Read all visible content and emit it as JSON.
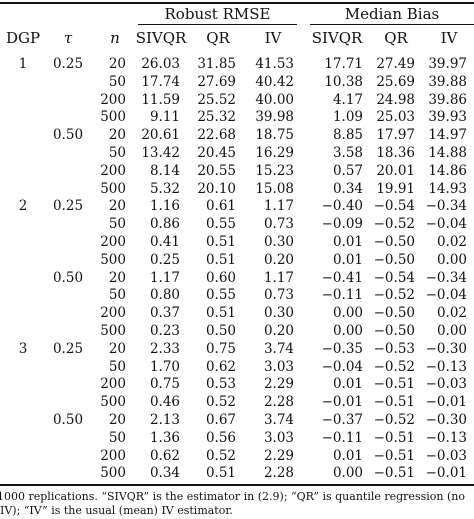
{
  "headers": {
    "group_rmse": "Robust RMSE",
    "group_bias": "Median Bias",
    "dgp": "DGP",
    "tau": "τ",
    "n": "n",
    "cols": [
      "SIVQR",
      "QR",
      "IV",
      "SIVQR",
      "QR",
      "IV"
    ]
  },
  "rows": [
    {
      "dgp": "1",
      "tau": "0.25",
      "n": "20",
      "vals": [
        "26.03",
        "31.85",
        "41.53",
        "17.71",
        "27.49",
        "39.97"
      ]
    },
    {
      "dgp": "",
      "tau": "",
      "n": "50",
      "vals": [
        "17.74",
        "27.69",
        "40.42",
        "10.38",
        "25.69",
        "39.88"
      ]
    },
    {
      "dgp": "",
      "tau": "",
      "n": "200",
      "vals": [
        "11.59",
        "25.52",
        "40.00",
        "4.17",
        "24.98",
        "39.86"
      ]
    },
    {
      "dgp": "",
      "tau": "",
      "n": "500",
      "vals": [
        "9.11",
        "25.32",
        "39.98",
        "1.09",
        "25.03",
        "39.93"
      ]
    },
    {
      "dgp": "",
      "tau": "0.50",
      "n": "20",
      "vals": [
        "20.61",
        "22.68",
        "18.75",
        "8.85",
        "17.97",
        "14.97"
      ]
    },
    {
      "dgp": "",
      "tau": "",
      "n": "50",
      "vals": [
        "13.42",
        "20.45",
        "16.29",
        "3.58",
        "18.36",
        "14.88"
      ]
    },
    {
      "dgp": "",
      "tau": "",
      "n": "200",
      "vals": [
        "8.14",
        "20.55",
        "15.23",
        "0.57",
        "20.01",
        "14.86"
      ]
    },
    {
      "dgp": "",
      "tau": "",
      "n": "500",
      "vals": [
        "5.32",
        "20.10",
        "15.08",
        "0.34",
        "19.91",
        "14.93"
      ]
    },
    {
      "dgp": "2",
      "tau": "0.25",
      "n": "20",
      "vals": [
        "1.16",
        "0.61",
        "1.17",
        "−0.40",
        "−0.54",
        "−0.34"
      ]
    },
    {
      "dgp": "",
      "tau": "",
      "n": "50",
      "vals": [
        "0.86",
        "0.55",
        "0.73",
        "−0.09",
        "−0.52",
        "−0.04"
      ]
    },
    {
      "dgp": "",
      "tau": "",
      "n": "200",
      "vals": [
        "0.41",
        "0.51",
        "0.30",
        "0.01",
        "−0.50",
        "0.02"
      ]
    },
    {
      "dgp": "",
      "tau": "",
      "n": "500",
      "vals": [
        "0.25",
        "0.51",
        "0.20",
        "0.01",
        "−0.50",
        "0.00"
      ]
    },
    {
      "dgp": "",
      "tau": "0.50",
      "n": "20",
      "vals": [
        "1.17",
        "0.60",
        "1.17",
        "−0.41",
        "−0.54",
        "−0.34"
      ]
    },
    {
      "dgp": "",
      "tau": "",
      "n": "50",
      "vals": [
        "0.80",
        "0.55",
        "0.73",
        "−0.11",
        "−0.52",
        "−0.04"
      ]
    },
    {
      "dgp": "",
      "tau": "",
      "n": "200",
      "vals": [
        "0.37",
        "0.51",
        "0.30",
        "0.00",
        "−0.50",
        "0.02"
      ]
    },
    {
      "dgp": "",
      "tau": "",
      "n": "500",
      "vals": [
        "0.23",
        "0.50",
        "0.20",
        "0.00",
        "−0.50",
        "0.00"
      ]
    },
    {
      "dgp": "3",
      "tau": "0.25",
      "n": "20",
      "vals": [
        "2.33",
        "0.75",
        "3.74",
        "−0.35",
        "−0.53",
        "−0.30"
      ]
    },
    {
      "dgp": "",
      "tau": "",
      "n": "50",
      "vals": [
        "1.70",
        "0.62",
        "3.03",
        "−0.04",
        "−0.52",
        "−0.13"
      ]
    },
    {
      "dgp": "",
      "tau": "",
      "n": "200",
      "vals": [
        "0.75",
        "0.53",
        "2.29",
        "0.01",
        "−0.51",
        "−0.03"
      ]
    },
    {
      "dgp": "",
      "tau": "",
      "n": "500",
      "vals": [
        "0.46",
        "0.52",
        "2.28",
        "−0.01",
        "−0.51",
        "−0.01"
      ]
    },
    {
      "dgp": "",
      "tau": "0.50",
      "n": "20",
      "vals": [
        "2.13",
        "0.67",
        "3.74",
        "−0.37",
        "−0.52",
        "−0.30"
      ]
    },
    {
      "dgp": "",
      "tau": "",
      "n": "50",
      "vals": [
        "1.36",
        "0.56",
        "3.03",
        "−0.11",
        "−0.51",
        "−0.13"
      ]
    },
    {
      "dgp": "",
      "tau": "",
      "n": "200",
      "vals": [
        "0.62",
        "0.52",
        "2.29",
        "0.01",
        "−0.51",
        "−0.03"
      ]
    },
    {
      "dgp": "",
      "tau": "",
      "n": "500",
      "vals": [
        "0.34",
        "0.51",
        "2.28",
        "0.00",
        "−0.51",
        "−0.01"
      ]
    }
  ],
  "footnote": {
    "line1": "1000 replications.  “SIVQR” is the estimator in (2.9); “QR” is quantile regression (no",
    "line2": "IV); “IV” is the usual (mean) IV estimator."
  }
}
